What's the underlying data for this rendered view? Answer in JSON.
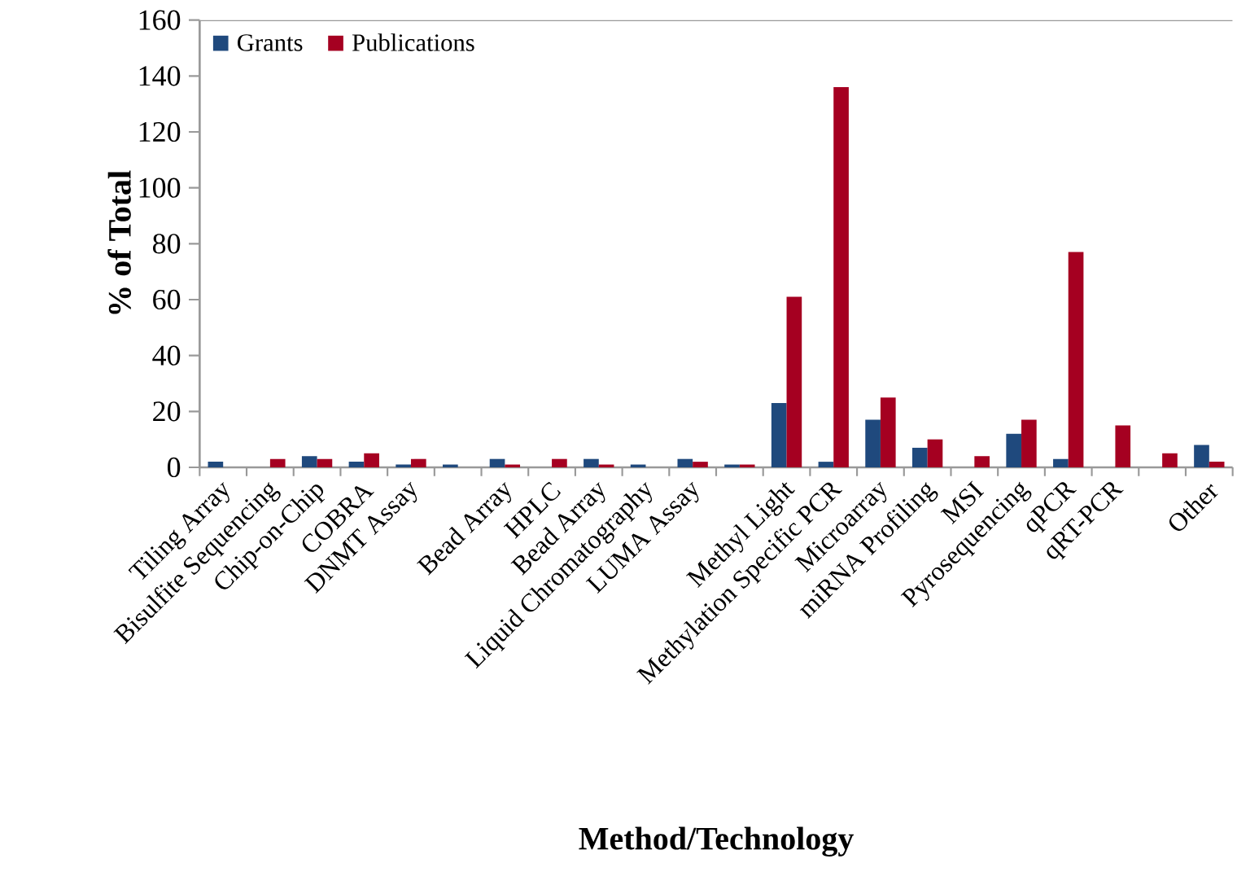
{
  "chart_data": {
    "type": "bar",
    "xlabel": "Method/Technology",
    "ylabel": "% of Total",
    "categories": [
      "Tiling Array",
      "Bisulfite Sequencing",
      "Chip-on-Chip",
      "COBRA",
      "DNMT Assay",
      null,
      "Bead Array",
      "HPLC",
      "Bead Array",
      "Liquid Chromatography",
      "LUMA Assay",
      null,
      "Methyl Light",
      "Methylation Specific PCR",
      "Microarray",
      "miRNA Profiling",
      "MSI",
      "Pyrosequencing",
      "qPCR",
      "qRT-PCR",
      null,
      "Other"
    ],
    "series": [
      {
        "name": "Grants",
        "color": "#1f497d",
        "values": [
          2,
          0,
          4,
          2,
          1,
          1,
          3,
          0,
          3,
          1,
          3,
          1,
          23,
          2,
          17,
          7,
          0,
          12,
          3,
          0,
          0,
          8
        ]
      },
      {
        "name": "Publications",
        "color": "#a50021",
        "values": [
          0,
          3,
          3,
          5,
          3,
          0,
          1,
          3,
          1,
          0,
          2,
          1,
          61,
          136,
          25,
          10,
          4,
          17,
          77,
          15,
          5,
          2
        ]
      }
    ],
    "ylim": [
      0,
      160
    ],
    "yticks": [
      0,
      20,
      40,
      60,
      80,
      100,
      120,
      140,
      160
    ],
    "legend": "top left",
    "grid": false
  }
}
